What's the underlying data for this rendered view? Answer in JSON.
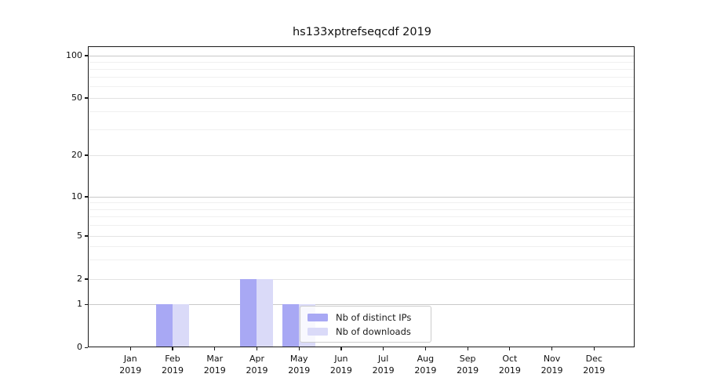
{
  "chart_data": {
    "type": "bar",
    "title": "hs133xptrefseqcdf 2019",
    "categories": [
      "Jan",
      "Feb",
      "Mar",
      "Apr",
      "May",
      "Jun",
      "Jul",
      "Aug",
      "Sep",
      "Oct",
      "Nov",
      "Dec"
    ],
    "x_year_label": "2019",
    "series": [
      {
        "name": "Nb of distinct IPs",
        "color": "#a8a8f4",
        "values": [
          0,
          1,
          0,
          2,
          1,
          0,
          0,
          0,
          0,
          0,
          0,
          0
        ]
      },
      {
        "name": "Nb of downloads",
        "color": "#dadaf8",
        "values": [
          0,
          1,
          0,
          2,
          1,
          0,
          0,
          0,
          0,
          0,
          0,
          0
        ]
      }
    ],
    "y_axis": {
      "scale": "symlog",
      "ticks": [
        0,
        1,
        2,
        5,
        10,
        20,
        50,
        100
      ],
      "minor_gridlines": [
        3,
        4,
        6,
        7,
        8,
        9,
        30,
        40,
        60,
        70,
        80,
        90
      ],
      "ylim": [
        0,
        117
      ],
      "grid": "on"
    },
    "legend": {
      "position": "lower-right-inside",
      "entries": [
        "Nb of distinct IPs",
        "Nb of downloads"
      ]
    }
  },
  "colors": {
    "background": "#ffffff",
    "spine": "#1a1a1a",
    "grid_decade": "#c9c9c9",
    "grid_labeled": "#e3e3e3",
    "grid_minor": "#f0f0f0",
    "text": "#111111",
    "legend_border": "#cccccc"
  }
}
